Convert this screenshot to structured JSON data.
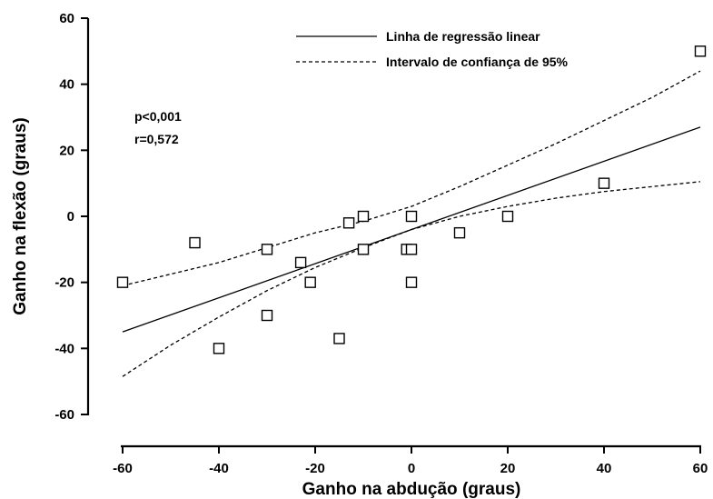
{
  "chart_data": {
    "type": "scatter",
    "title": "",
    "xlabel": "Ganho na abdução (graus)",
    "ylabel": "Ganho na flexão (graus)",
    "xlim": [
      -60,
      60
    ],
    "ylim": [
      -60,
      60
    ],
    "xticks": [
      -60,
      -40,
      -20,
      0,
      20,
      40,
      60
    ],
    "yticks": [
      -60,
      -40,
      -20,
      0,
      20,
      40,
      60
    ],
    "xtick_labels": [
      "-60",
      "-40",
      "-20",
      "0",
      "20",
      "40",
      "60"
    ],
    "ytick_labels": [
      "-60",
      "-40",
      "-20",
      "0",
      "20",
      "40",
      "60"
    ],
    "grid": false,
    "legend_position": "top-right",
    "series": [
      {
        "name": "",
        "kind": "points",
        "x": [
          -60,
          -45,
          -30,
          -30,
          -23,
          -21,
          -15,
          -13,
          -10,
          -10,
          -40,
          -1,
          0,
          0,
          0,
          10,
          20,
          40,
          60
        ],
        "y": [
          -20,
          -8,
          -10,
          -30,
          -14,
          -20,
          -37,
          -2,
          0,
          -10,
          -40,
          -10,
          0,
          -10,
          -20,
          -5,
          0,
          10,
          50
        ]
      },
      {
        "name": "Linha de regressão linear",
        "kind": "line",
        "style": "solid",
        "x": [
          -60,
          60
        ],
        "y": [
          -35,
          27
        ]
      },
      {
        "name": "Intervalo de confiança de 95%",
        "kind": "band",
        "style": "dashed",
        "x": [
          -60,
          -50,
          -40,
          -30,
          -20,
          -10,
          0,
          10,
          20,
          30,
          40,
          50,
          60
        ],
        "upper": [
          -21,
          -17.5,
          -14,
          -9.5,
          -5,
          -1.5,
          3,
          9,
          15.5,
          22,
          29,
          36,
          44
        ],
        "lower": [
          -48.5,
          -39,
          -30.5,
          -22.5,
          -15.5,
          -9.5,
          -4,
          0,
          3,
          5.5,
          7.5,
          9,
          10.5
        ]
      }
    ],
    "annotations": [
      "p<0,001",
      "r=0,572"
    ]
  }
}
